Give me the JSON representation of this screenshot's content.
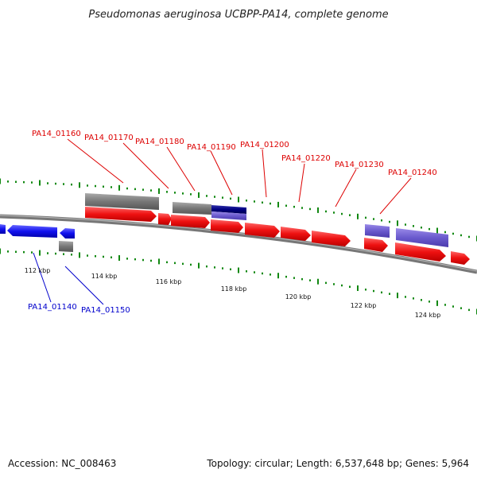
{
  "title": "Pseudomonas aeruginosa UCBPP-PA14, complete genome",
  "footer": {
    "accession": "Accession: NC_008463",
    "summary": "Topology: circular; Length: 6,537,648 bp; Genes: 5,964"
  },
  "colors": {
    "forward_gene": "#ee1111",
    "reverse_gene": "#1111ee",
    "forward_label": "#dd0000",
    "reverse_label": "#0000cc",
    "backbone": "#777777",
    "gray_feature": "#777777",
    "purple_feature": "#6a5acd",
    "navy_feature": "#000080",
    "tick": "#118811"
  },
  "ruler": {
    "labels": [
      "112 kbp",
      "114 kbp",
      "116 kbp",
      "118 kbp",
      "120 kbp",
      "122 kbp",
      "124 kbp"
    ]
  },
  "gene_labels": {
    "forward": [
      "PA14_01160",
      "PA14_01170",
      "PA14_01180",
      "PA14_01190",
      "PA14_01200",
      "PA14_01220",
      "PA14_01230",
      "PA14_01240"
    ],
    "reverse": [
      "PA14_01140",
      "PA14_01150"
    ]
  }
}
